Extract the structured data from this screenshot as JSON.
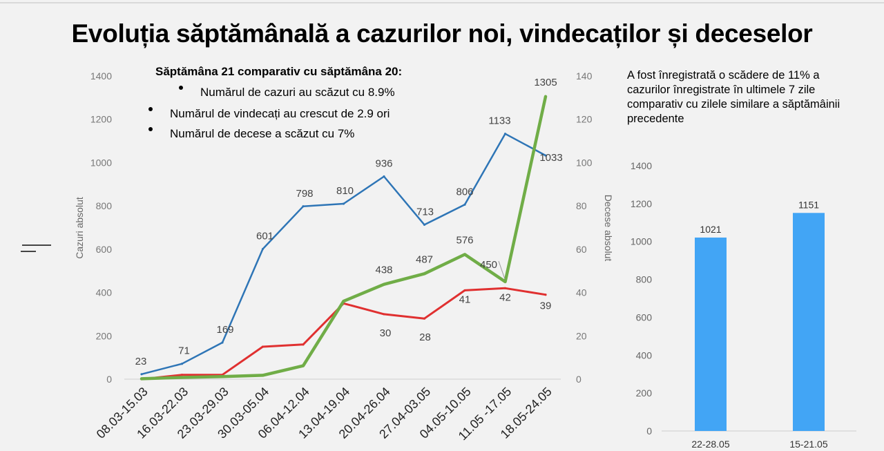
{
  "title": "Evoluția săptămânală a cazurilor noi, vindecaților și deceselor",
  "summary": {
    "heading": "Săptămâna 21 comparativ cu săptămâna 20:",
    "bullets": [
      "Numărul de cazuri au scăzut cu 8.9%",
      "Numărul de vindecați au crescut de 2.9 ori",
      "Numărul de decese a scăzut cu 7%"
    ]
  },
  "note": "A fost înregistrată o scădere de 11% a cazurilor înregistrate în ultimele 7 zile comparativ cu zilele similare a săptămâinii precedente",
  "colors": {
    "cases": "#2e75b6",
    "recovered": "#70ad47",
    "deaths": "#e03030",
    "bars": "#42a5f5"
  },
  "chart_data": [
    {
      "type": "line",
      "categories": [
        "08.03-15.03",
        "16.03-22.03",
        "23.03-29.03",
        "30.03-05.04",
        "06.04-12.04",
        "13.04-19.04",
        "20.04-26.04",
        "27.04-03.05",
        "04.05-10.05",
        "11.05 -17.05",
        "18.05-24.05"
      ],
      "ylabel": "Cazuri absolut",
      "y2label": "Decese absolut",
      "ylim": [
        0,
        1400
      ],
      "y2lim": [
        0,
        140
      ],
      "yticks": [
        "0",
        "200",
        "400",
        "600",
        "800",
        "1000",
        "1200",
        "1400"
      ],
      "y2ticks": [
        "0",
        "20",
        "40",
        "60",
        "80",
        "100",
        "120",
        "140"
      ],
      "series": [
        {
          "key": "cases",
          "axis": "left",
          "values": [
            23,
            71,
            169,
            601,
            798,
            810,
            936,
            713,
            806,
            1133,
            1033
          ],
          "labels": [
            "23",
            "71",
            "169",
            "601",
            "798",
            "810",
            "936",
            "713",
            "806",
            "1133",
            "1033"
          ]
        },
        {
          "key": "recovered",
          "axis": "left",
          "values": [
            2,
            8,
            12,
            18,
            62,
            360,
            438,
            487,
            576,
            450,
            1305
          ],
          "labels": [
            "",
            "",
            "",
            "",
            "",
            "",
            "438",
            "487",
            "576",
            "450",
            "1305"
          ]
        },
        {
          "key": "deaths",
          "axis": "right",
          "values": [
            0,
            2,
            2,
            15,
            16,
            35,
            30,
            28,
            41,
            42,
            39
          ],
          "labels": [
            "",
            "",
            "",
            "",
            "",
            "",
            "30",
            "28",
            "41",
            "42",
            "39"
          ]
        }
      ]
    },
    {
      "type": "bar",
      "categories": [
        "22-28.05",
        "15-21.05"
      ],
      "values": [
        1021,
        1151
      ],
      "labels": [
        "1021",
        "1151"
      ],
      "ylim": [
        0,
        1400
      ],
      "yticks": [
        "0",
        "200",
        "400",
        "600",
        "800",
        "1000",
        "1200",
        "1400"
      ]
    }
  ]
}
